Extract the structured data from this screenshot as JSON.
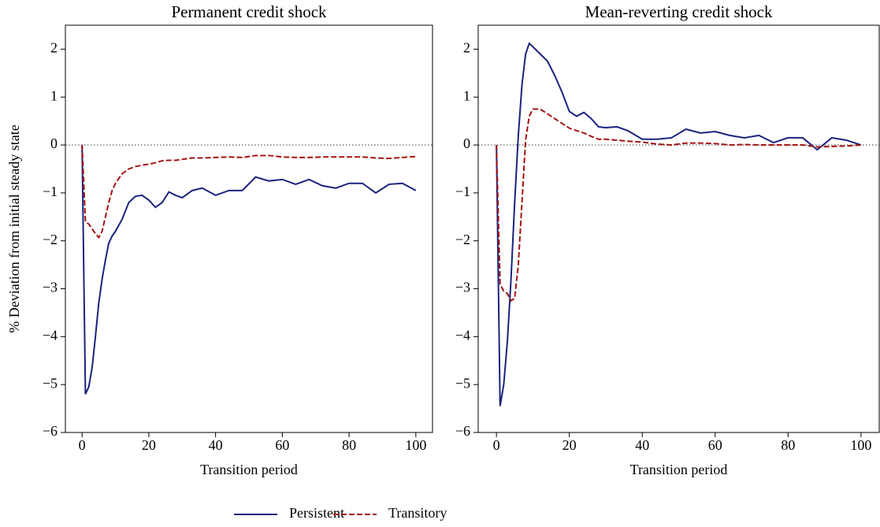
{
  "chart_data": [
    {
      "type": "line",
      "title": "Permanent credit shock",
      "x_label": "Transition period",
      "y_label": "% Deviation from initial steady state",
      "x": [
        0,
        1,
        2,
        3,
        4,
        5,
        6,
        7,
        8,
        9,
        10,
        12,
        14,
        16,
        18,
        20,
        22,
        24,
        26,
        28,
        30,
        33,
        36,
        40,
        44,
        48,
        52,
        56,
        60,
        64,
        68,
        72,
        76,
        80,
        84,
        88,
        92,
        96,
        100
      ],
      "series": [
        {
          "name": "Persistent",
          "color": "#1a237e",
          "dash": false,
          "values": [
            0,
            -5.2,
            -5.05,
            -4.65,
            -4.0,
            -3.3,
            -2.8,
            -2.4,
            -2.05,
            -1.9,
            -1.8,
            -1.55,
            -1.2,
            -1.07,
            -1.05,
            -1.15,
            -1.3,
            -1.2,
            -0.98,
            -1.05,
            -1.1,
            -0.95,
            -0.9,
            -1.05,
            -0.95,
            -0.95,
            -0.67,
            -0.75,
            -0.72,
            -0.82,
            -0.72,
            -0.85,
            -0.9,
            -0.8,
            -0.8,
            -1.0,
            -0.82,
            -0.8,
            -0.95
          ]
        },
        {
          "name": "Transitory",
          "color": "#a31515",
          "dash": true,
          "values": [
            0,
            -1.6,
            -1.65,
            -1.75,
            -1.85,
            -1.93,
            -1.8,
            -1.5,
            -1.2,
            -0.95,
            -0.8,
            -0.6,
            -0.5,
            -0.45,
            -0.42,
            -0.4,
            -0.37,
            -0.33,
            -0.32,
            -0.32,
            -0.3,
            -0.27,
            -0.27,
            -0.26,
            -0.25,
            -0.26,
            -0.22,
            -0.22,
            -0.25,
            -0.26,
            -0.26,
            -0.25,
            -0.25,
            -0.25,
            -0.25,
            -0.27,
            -0.28,
            -0.26,
            -0.24
          ]
        }
      ],
      "xlim": [
        -5,
        105
      ],
      "xticks": [
        0,
        20,
        40,
        60,
        80,
        100
      ],
      "ylim": [
        -6,
        2.5
      ],
      "yticks": [
        {
          "value": -6,
          "label": "−6"
        },
        {
          "value": -5,
          "label": "−5"
        },
        {
          "value": -4,
          "label": "−4"
        },
        {
          "value": -3,
          "label": "−3"
        },
        {
          "value": -2,
          "label": "−2"
        },
        {
          "value": -1,
          "label": "−1"
        },
        0,
        1,
        2
      ],
      "hline": 0,
      "legend": "bottom"
    },
    {
      "type": "line",
      "title": "Mean-reverting credit shock",
      "x_label": "Transition period",
      "x": [
        0,
        1,
        2,
        3,
        4,
        5,
        6,
        7,
        8,
        9,
        10,
        12,
        14,
        16,
        18,
        20,
        22,
        24,
        26,
        28,
        30,
        33,
        36,
        40,
        44,
        48,
        52,
        56,
        60,
        64,
        68,
        72,
        76,
        80,
        84,
        88,
        92,
        96,
        100
      ],
      "series": [
        {
          "color": "#1a237e",
          "dash": false,
          "values": [
            0,
            -5.45,
            -5.0,
            -4.1,
            -2.8,
            -1.2,
            0.2,
            1.25,
            1.9,
            2.12,
            2.05,
            1.9,
            1.75,
            1.45,
            1.1,
            0.7,
            0.6,
            0.68,
            0.55,
            0.38,
            0.36,
            0.38,
            0.3,
            0.12,
            0.12,
            0.15,
            0.33,
            0.25,
            0.28,
            0.2,
            0.15,
            0.2,
            0.05,
            0.15,
            0.15,
            -0.1,
            0.15,
            0.1,
            0
          ]
        },
        {
          "color": "#a31515",
          "dash": true,
          "values": [
            0,
            -2.9,
            -3.05,
            -3.1,
            -3.25,
            -3.2,
            -2.5,
            -1.2,
            0.1,
            0.6,
            0.75,
            0.75,
            0.65,
            0.55,
            0.45,
            0.35,
            0.3,
            0.25,
            0.18,
            0.12,
            0.12,
            0.1,
            0.08,
            0.06,
            0.02,
            0.0,
            0.04,
            0.04,
            0.03,
            0.0,
            0.01,
            0.0,
            0.0,
            0.0,
            0.0,
            -0.04,
            -0.03,
            -0.02,
            0.0
          ]
        }
      ],
      "xlim": [
        -5,
        105
      ],
      "xticks": [
        0,
        20,
        40,
        60,
        80,
        100
      ],
      "ylim": [
        -6,
        2.5
      ],
      "yticks": [
        {
          "value": -6,
          "label": "−6"
        },
        {
          "value": -5,
          "label": "−5"
        },
        {
          "value": -4,
          "label": "−4"
        },
        {
          "value": -3,
          "label": "−3"
        },
        {
          "value": -2,
          "label": "−2"
        },
        {
          "value": -1,
          "label": "−1"
        },
        0,
        1,
        2
      ],
      "hline": 0
    }
  ]
}
